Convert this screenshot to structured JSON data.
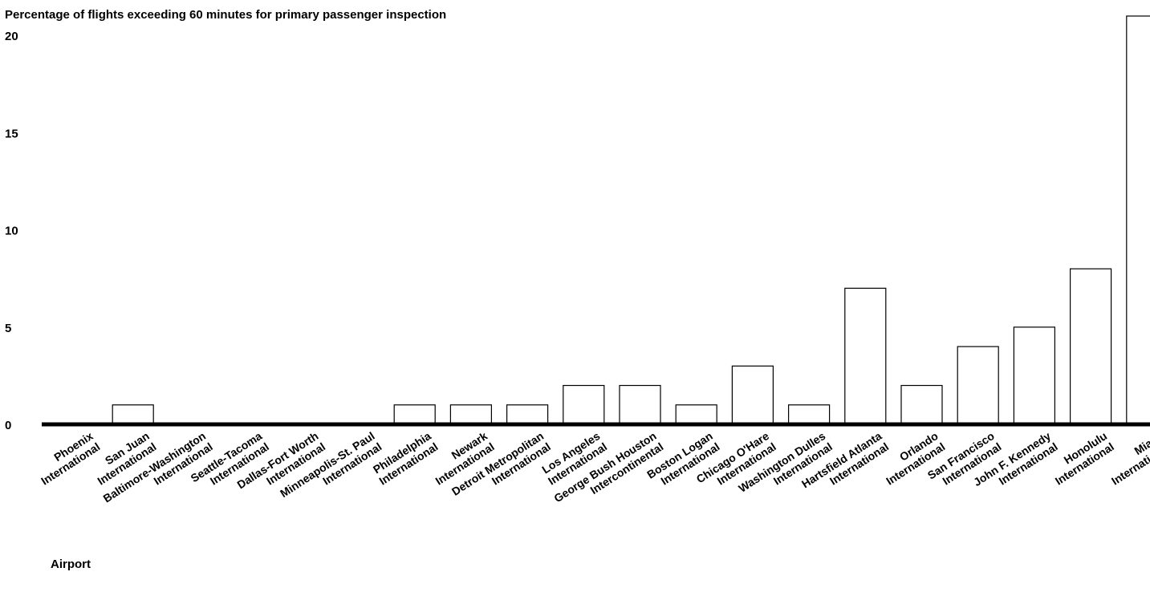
{
  "chart_data": {
    "type": "bar",
    "title": "Percentage of flights exceeding 60 minutes for primary passenger inspection",
    "xlabel": "Airport",
    "ylabel": "",
    "ylim": [
      0,
      21
    ],
    "yticks": [
      0,
      5,
      10,
      15,
      20
    ],
    "grid": false,
    "legend": "none",
    "bar_fill": "#ffffff",
    "bar_stroke": "#000000",
    "categories": [
      [
        "Phoenix",
        "International"
      ],
      [
        "San Juan",
        "International"
      ],
      [
        "Baltimore-Washington",
        "International"
      ],
      [
        "Seattle-Tacoma",
        "International"
      ],
      [
        "Dallas-Fort Worth",
        "International"
      ],
      [
        "Minneapolis-St. Paul",
        "International"
      ],
      [
        "Philadelphia",
        "International"
      ],
      [
        "Newark",
        "International"
      ],
      [
        "Detroit Metropolitan",
        "International"
      ],
      [
        "Los Angeles",
        "International"
      ],
      [
        "George Bush Houston",
        "Intercontinental"
      ],
      [
        "Boston Logan",
        "International"
      ],
      [
        "Chicago O'Hare",
        "International"
      ],
      [
        "Washington Dulles",
        "International"
      ],
      [
        "Hartsfield Atlanta",
        "International"
      ],
      [
        "Orlando",
        "International"
      ],
      [
        "San Francisco",
        "International"
      ],
      [
        "John F. Kennedy",
        "International"
      ],
      [
        "Honolulu",
        "International"
      ],
      [
        "Miami",
        "International"
      ]
    ],
    "values": [
      0,
      1,
      0,
      0,
      0,
      0,
      1,
      1,
      1,
      2,
      2,
      1,
      3,
      1,
      7,
      2,
      4,
      5,
      8,
      21
    ]
  }
}
